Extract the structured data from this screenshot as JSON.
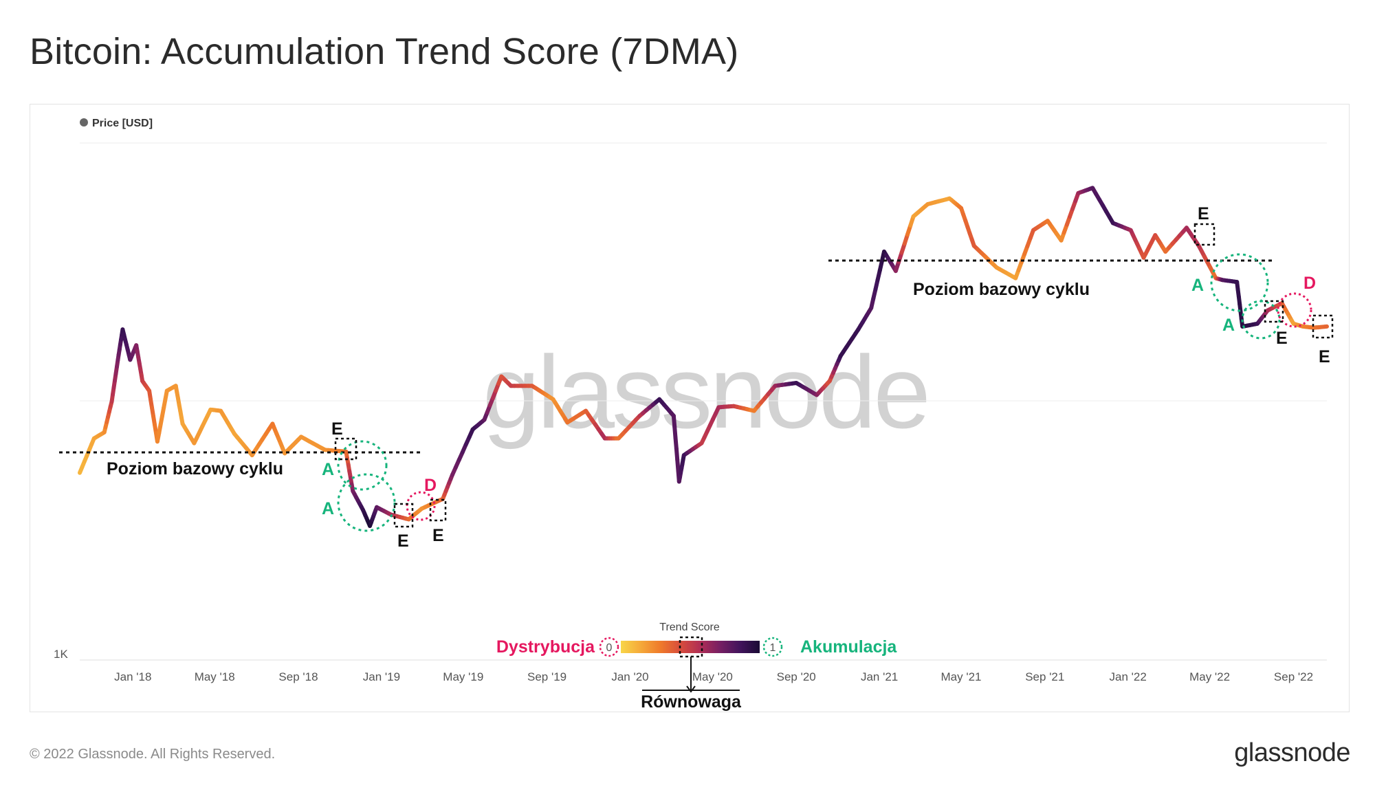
{
  "title": "Bitcoin: Accumulation Trend Score (7DMA)",
  "footer": {
    "copyright": "© 2022 Glassnode. All Rights Reserved.",
    "logo": "glassnode"
  },
  "watermark": "glassnode",
  "chart_data": {
    "type": "line",
    "legend": "Price [USD]",
    "y_axis": {
      "scale": "log",
      "tick_labels": [
        "1K"
      ]
    },
    "x_ticks": [
      "Jan '18",
      "May '18",
      "Sep '18",
      "Jan '19",
      "May '19",
      "Sep '19",
      "Jan '20",
      "May '20",
      "Sep '20",
      "Jan '21",
      "May '21",
      "Sep '21",
      "Jan '22",
      "May '22",
      "Sep '22"
    ],
    "x_start": "2017-10-15",
    "x_end": "2022-10-20",
    "series": [
      {
        "name": "Price [USD]",
        "points": [
          [
            "2017-10-15",
            5300,
            0.1
          ],
          [
            "2017-11-05",
            7200,
            0.15
          ],
          [
            "2017-11-20",
            7600,
            0.2
          ],
          [
            "2017-12-01",
            10000,
            0.5
          ],
          [
            "2017-12-10",
            14500,
            0.7
          ],
          [
            "2017-12-17",
            19000,
            0.9
          ],
          [
            "2017-12-28",
            14500,
            0.8
          ],
          [
            "2018-01-06",
            16500,
            0.7
          ],
          [
            "2018-01-15",
            12000,
            0.5
          ],
          [
            "2018-01-25",
            11000,
            0.4
          ],
          [
            "2018-02-06",
            7000,
            0.25
          ],
          [
            "2018-02-20",
            11000,
            0.2
          ],
          [
            "2018-03-05",
            11500,
            0.2
          ],
          [
            "2018-03-15",
            8200,
            0.15
          ],
          [
            "2018-04-01",
            6900,
            0.2
          ],
          [
            "2018-04-25",
            9300,
            0.15
          ],
          [
            "2018-05-10",
            9200,
            0.2
          ],
          [
            "2018-05-30",
            7500,
            0.15
          ],
          [
            "2018-06-25",
            6200,
            0.2
          ],
          [
            "2018-07-25",
            8200,
            0.3
          ],
          [
            "2018-08-12",
            6300,
            0.2
          ],
          [
            "2018-09-05",
            7300,
            0.2
          ],
          [
            "2018-10-10",
            6500,
            0.2
          ],
          [
            "2018-11-10",
            6400,
            0.3
          ],
          [
            "2018-11-20",
            4500,
            0.7
          ],
          [
            "2018-12-05",
            3800,
            0.9
          ],
          [
            "2018-12-15",
            3300,
            1.0
          ],
          [
            "2018-12-25",
            3900,
            0.8
          ],
          [
            "2019-01-15",
            3650,
            0.6
          ],
          [
            "2019-02-10",
            3500,
            0.35
          ],
          [
            "2019-03-01",
            3850,
            0.2
          ],
          [
            "2019-04-01",
            4200,
            0.35
          ],
          [
            "2019-04-15",
            5200,
            0.7
          ],
          [
            "2019-05-15",
            7800,
            0.9
          ],
          [
            "2019-06-01",
            8500,
            0.8
          ],
          [
            "2019-06-26",
            12500,
            0.4
          ],
          [
            "2019-07-10",
            11500,
            0.5
          ],
          [
            "2019-08-10",
            11500,
            0.4
          ],
          [
            "2019-09-10",
            10200,
            0.2
          ],
          [
            "2019-10-01",
            8300,
            0.3
          ],
          [
            "2019-10-28",
            9200,
            0.35
          ],
          [
            "2019-11-25",
            7200,
            0.6
          ],
          [
            "2019-12-15",
            7200,
            0.3
          ],
          [
            "2020-01-15",
            8800,
            0.5
          ],
          [
            "2020-02-13",
            10200,
            0.9
          ],
          [
            "2020-03-05",
            8800,
            0.8
          ],
          [
            "2020-03-13",
            4900,
            0.8
          ],
          [
            "2020-03-20",
            6200,
            0.9
          ],
          [
            "2020-04-15",
            6900,
            0.5
          ],
          [
            "2020-05-10",
            9500,
            0.6
          ],
          [
            "2020-06-01",
            9600,
            0.5
          ],
          [
            "2020-07-01",
            9200,
            0.25
          ],
          [
            "2020-08-01",
            11500,
            0.6
          ],
          [
            "2020-09-01",
            11800,
            0.9
          ],
          [
            "2020-10-01",
            10600,
            0.7
          ],
          [
            "2020-10-20",
            12000,
            0.4
          ],
          [
            "2020-11-05",
            15000,
            0.9
          ],
          [
            "2020-12-01",
            19000,
            0.9
          ],
          [
            "2020-12-20",
            23000,
            0.8
          ],
          [
            "2021-01-08",
            38000,
            0.95
          ],
          [
            "2021-01-25",
            32000,
            0.7
          ],
          [
            "2021-02-20",
            52000,
            0.15
          ],
          [
            "2021-03-13",
            58000,
            0.2
          ],
          [
            "2021-04-14",
            61000,
            0.15
          ],
          [
            "2021-05-01",
            56000,
            0.3
          ],
          [
            "2021-05-20",
            40000,
            0.4
          ],
          [
            "2021-06-22",
            33000,
            0.2
          ],
          [
            "2021-07-20",
            30000,
            0.15
          ],
          [
            "2021-08-15",
            46000,
            0.4
          ],
          [
            "2021-09-05",
            50000,
            0.3
          ],
          [
            "2021-09-25",
            42000,
            0.2
          ],
          [
            "2021-10-20",
            64000,
            0.6
          ],
          [
            "2021-11-10",
            67000,
            0.8
          ],
          [
            "2021-12-10",
            49000,
            0.9
          ],
          [
            "2022-01-05",
            46000,
            0.6
          ],
          [
            "2022-01-24",
            36000,
            0.4
          ],
          [
            "2022-02-10",
            44000,
            0.45
          ],
          [
            "2022-02-25",
            38000,
            0.3
          ],
          [
            "2022-03-28",
            47000,
            0.6
          ],
          [
            "2022-04-15",
            40000,
            0.55
          ],
          [
            "2022-05-10",
            30000,
            0.3
          ],
          [
            "2022-05-20",
            29500,
            0.8
          ],
          [
            "2022-06-10",
            29000,
            0.9
          ],
          [
            "2022-06-18",
            19500,
            0.95
          ],
          [
            "2022-07-10",
            20000,
            0.9
          ],
          [
            "2022-07-25",
            22500,
            0.6
          ],
          [
            "2022-08-15",
            24000,
            0.4
          ],
          [
            "2022-09-01",
            20000,
            0.15
          ],
          [
            "2022-09-15",
            19500,
            0.25
          ],
          [
            "2022-10-01",
            19300,
            0.3
          ],
          [
            "2022-10-20",
            19500,
            0.35
          ]
        ]
      }
    ],
    "color_scale": {
      "title": "Trend Score",
      "stops": [
        "#f8d648",
        "#f5a93a",
        "#ef7a2b",
        "#d84d3c",
        "#b02e55",
        "#761f63",
        "#42145c",
        "#1a0b35"
      ],
      "min_label": "0",
      "max_label": "1",
      "left_label": "Dystrybucja",
      "right_label": "Akumulacja",
      "mid_label": "Równowaga"
    },
    "annotations": {
      "cycle_base_label": "Poziom bazowy cyklu",
      "accumulation_label": "A",
      "distribution_label": "D",
      "equilibrium_label": "E",
      "colors": {
        "accumulation": "#16b47c",
        "distribution": "#e5185f",
        "equilibrium": "#111111"
      }
    }
  }
}
